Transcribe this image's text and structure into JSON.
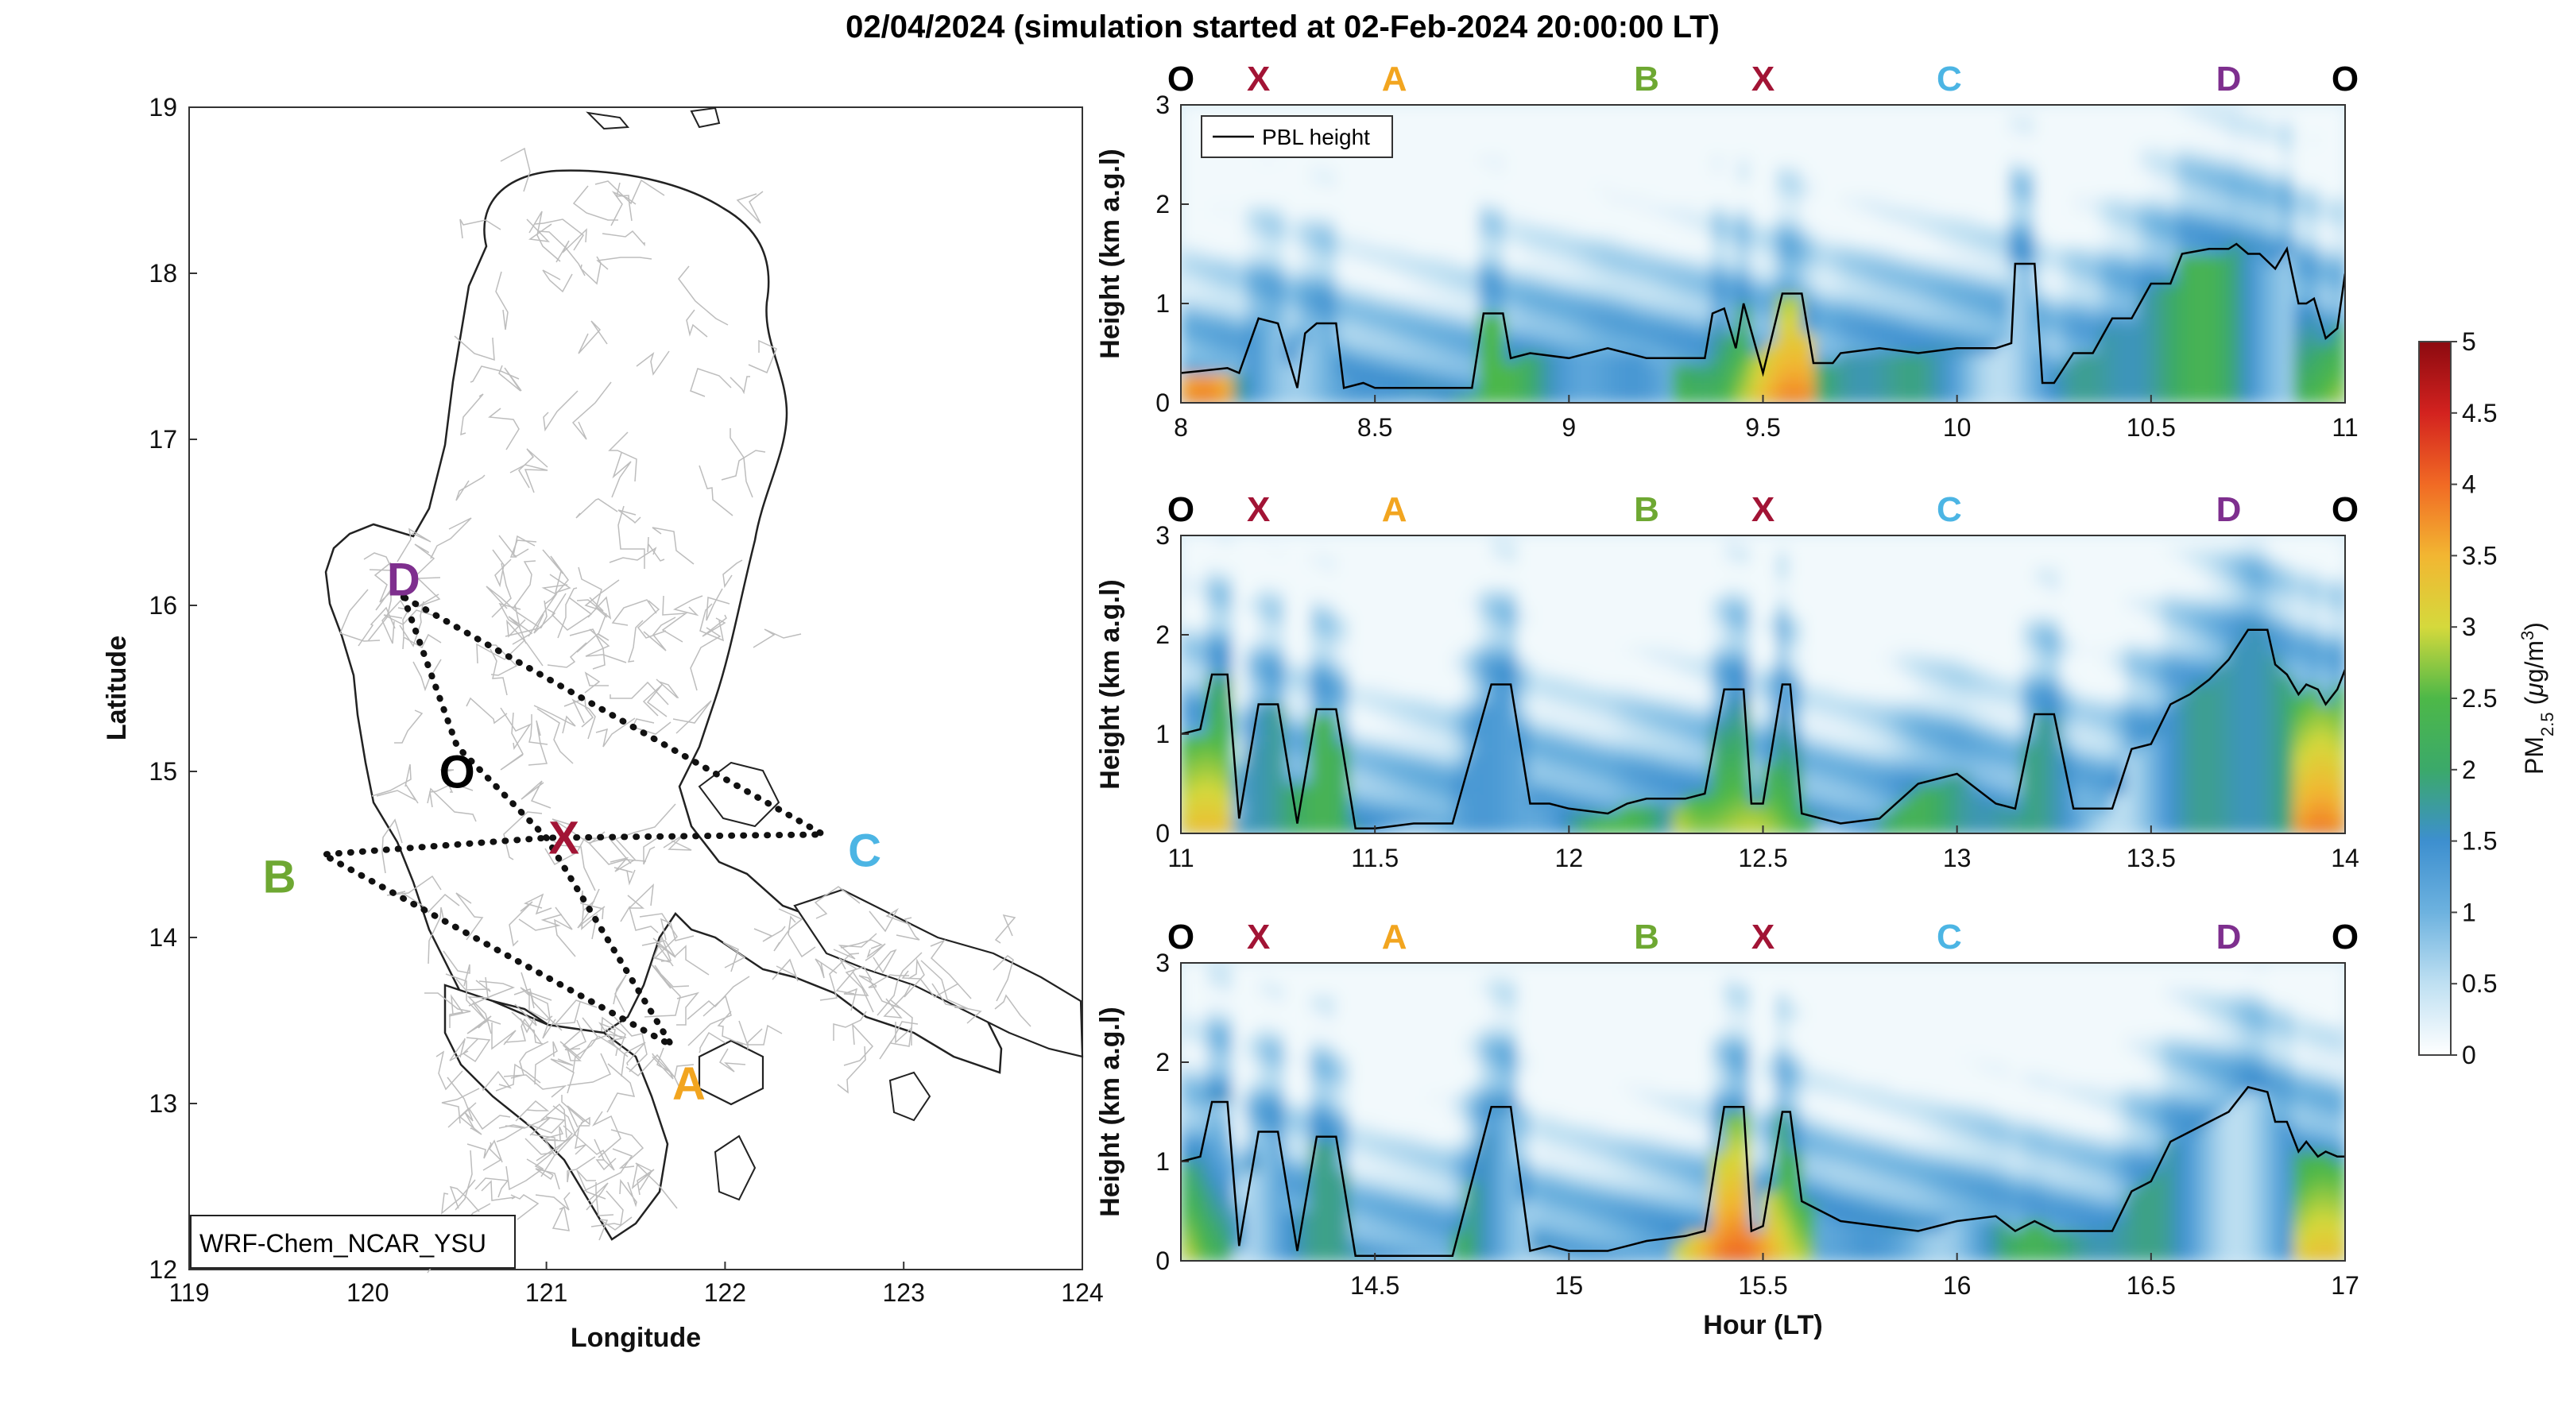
{
  "title": "02/04/2024 (simulation started at 02-Feb-2024 20:00:00 LT)",
  "colors": {
    "O": "#000000",
    "X": "#a21435",
    "A": "#f2a51f",
    "B": "#6ea832",
    "C": "#4cb5e4",
    "D": "#7e2f8e"
  },
  "map": {
    "model_label": "WRF-Chem_NCAR_YSU",
    "xlabel": "Longitude",
    "ylabel": "Latitude",
    "xticks": [
      119,
      120,
      121,
      122,
      123,
      124
    ],
    "yticks": [
      12,
      13,
      14,
      15,
      16,
      17,
      18,
      19
    ],
    "xlim": [
      119,
      124
    ],
    "ylim": [
      12,
      19
    ],
    "points": [
      {
        "name": "D",
        "lon": 120.2,
        "lat": 16.05
      },
      {
        "name": "O",
        "lon": 120.5,
        "lat": 15.15
      },
      {
        "name": "X",
        "lon": 121.0,
        "lat": 14.6
      },
      {
        "name": "B",
        "lon": 119.75,
        "lat": 14.5
      },
      {
        "name": "C",
        "lon": 122.55,
        "lat": 14.62
      },
      {
        "name": "A",
        "lon": 121.7,
        "lat": 13.35
      }
    ],
    "route": [
      "D",
      "O",
      "X",
      "A",
      "B",
      "X",
      "C",
      "D"
    ]
  },
  "chart_data": [
    {
      "type": "heatmap",
      "xlabel": "",
      "ylabel": "Height (km a.g.l)",
      "xlim": [
        8,
        11
      ],
      "ylim": [
        0,
        3
      ],
      "xticks": [
        8,
        8.5,
        9,
        9.5,
        10,
        10.5,
        11
      ],
      "yticks": [
        0,
        1,
        2,
        3
      ],
      "route_labels": [
        {
          "name": "O",
          "x": 8.0
        },
        {
          "name": "X",
          "x": 8.2
        },
        {
          "name": "A",
          "x": 8.55
        },
        {
          "name": "B",
          "x": 9.2
        },
        {
          "name": "X",
          "x": 9.5
        },
        {
          "name": "C",
          "x": 9.98
        },
        {
          "name": "D",
          "x": 10.7
        },
        {
          "name": "O",
          "x": 11.0
        }
      ],
      "legend": "PBL height",
      "pbl": {
        "x": [
          8.0,
          8.05,
          8.12,
          8.15,
          8.2,
          8.25,
          8.3,
          8.32,
          8.35,
          8.4,
          8.42,
          8.47,
          8.5,
          8.6,
          8.7,
          8.75,
          8.78,
          8.83,
          8.85,
          8.9,
          9.0,
          9.05,
          9.1,
          9.2,
          9.3,
          9.35,
          9.37,
          9.4,
          9.43,
          9.45,
          9.5,
          9.55,
          9.6,
          9.63,
          9.68,
          9.7,
          9.8,
          9.9,
          10.0,
          10.1,
          10.14,
          10.15,
          10.2,
          10.22,
          10.25,
          10.3,
          10.35,
          10.4,
          10.45,
          10.5,
          10.55,
          10.58,
          10.65,
          10.7,
          10.72,
          10.75,
          10.78,
          10.82,
          10.85,
          10.88,
          10.9,
          10.92,
          10.95,
          10.98,
          11.0
        ],
        "y": [
          0.3,
          0.32,
          0.35,
          0.3,
          0.85,
          0.8,
          0.15,
          0.7,
          0.8,
          0.8,
          0.15,
          0.2,
          0.15,
          0.15,
          0.15,
          0.15,
          0.9,
          0.9,
          0.45,
          0.5,
          0.45,
          0.5,
          0.55,
          0.45,
          0.45,
          0.45,
          0.9,
          0.95,
          0.55,
          1.0,
          0.3,
          1.1,
          1.1,
          0.4,
          0.4,
          0.5,
          0.55,
          0.5,
          0.55,
          0.55,
          0.6,
          1.4,
          1.4,
          0.2,
          0.2,
          0.5,
          0.5,
          0.85,
          0.85,
          1.2,
          1.2,
          1.5,
          1.55,
          1.55,
          1.6,
          1.5,
          1.5,
          1.35,
          1.55,
          1.0,
          1.0,
          1.05,
          0.65,
          0.75,
          1.3
        ]
      }
    },
    {
      "type": "heatmap",
      "xlabel": "",
      "ylabel": "Height (km a.g.l)",
      "xlim": [
        11,
        14
      ],
      "ylim": [
        0,
        3
      ],
      "xticks": [
        11,
        11.5,
        12,
        12.5,
        13,
        13.5,
        14
      ],
      "yticks": [
        0,
        1,
        2,
        3
      ],
      "route_labels": [
        {
          "name": "O",
          "x": 11.0
        },
        {
          "name": "X",
          "x": 11.2
        },
        {
          "name": "A",
          "x": 11.55
        },
        {
          "name": "B",
          "x": 12.2
        },
        {
          "name": "X",
          "x": 12.5
        },
        {
          "name": "C",
          "x": 12.98
        },
        {
          "name": "D",
          "x": 13.7
        },
        {
          "name": "O",
          "x": 14.0
        }
      ],
      "pbl": {
        "x": [
          11.0,
          11.05,
          11.08,
          11.12,
          11.15,
          11.2,
          11.25,
          11.3,
          11.35,
          11.4,
          11.45,
          11.5,
          11.6,
          11.7,
          11.8,
          11.85,
          11.9,
          11.95,
          12.0,
          12.1,
          12.15,
          12.2,
          12.3,
          12.35,
          12.4,
          12.45,
          12.47,
          12.5,
          12.55,
          12.57,
          12.6,
          12.65,
          12.7,
          12.8,
          12.9,
          13.0,
          13.1,
          13.15,
          13.2,
          13.25,
          13.3,
          13.4,
          13.45,
          13.5,
          13.55,
          13.6,
          13.65,
          13.7,
          13.75,
          13.8,
          13.82,
          13.85,
          13.88,
          13.9,
          13.93,
          13.95,
          13.98,
          14.0
        ],
        "y": [
          1.0,
          1.05,
          1.6,
          1.6,
          0.15,
          1.3,
          1.3,
          0.1,
          1.25,
          1.25,
          0.05,
          0.05,
          0.1,
          0.1,
          1.5,
          1.5,
          0.3,
          0.3,
          0.25,
          0.2,
          0.3,
          0.35,
          0.35,
          0.4,
          1.45,
          1.45,
          0.3,
          0.3,
          1.5,
          1.5,
          0.2,
          0.15,
          0.1,
          0.15,
          0.5,
          0.6,
          0.3,
          0.25,
          1.2,
          1.2,
          0.25,
          0.25,
          0.85,
          0.9,
          1.3,
          1.4,
          1.55,
          1.75,
          2.05,
          2.05,
          1.7,
          1.6,
          1.4,
          1.5,
          1.45,
          1.3,
          1.45,
          1.65
        ]
      }
    },
    {
      "type": "heatmap",
      "xlabel": "Hour (LT)",
      "ylabel": "Height (km a.g.l)",
      "xlim": [
        14,
        17
      ],
      "ylim": [
        0,
        3
      ],
      "xticks": [
        14.5,
        15,
        15.5,
        16,
        16.5,
        17
      ],
      "yticks": [
        0,
        1,
        2,
        3
      ],
      "route_labels": [
        {
          "name": "O",
          "x": 14.0
        },
        {
          "name": "X",
          "x": 14.2
        },
        {
          "name": "A",
          "x": 14.55
        },
        {
          "name": "B",
          "x": 15.2
        },
        {
          "name": "X",
          "x": 15.5
        },
        {
          "name": "C",
          "x": 15.98
        },
        {
          "name": "D",
          "x": 16.7
        },
        {
          "name": "O",
          "x": 17.0
        }
      ],
      "pbl": {
        "x": [
          14.0,
          14.05,
          14.08,
          14.12,
          14.15,
          14.2,
          14.25,
          14.3,
          14.35,
          14.4,
          14.45,
          14.5,
          14.6,
          14.7,
          14.8,
          14.85,
          14.9,
          14.95,
          15.0,
          15.1,
          15.15,
          15.2,
          15.3,
          15.35,
          15.4,
          15.45,
          15.47,
          15.5,
          15.55,
          15.57,
          15.6,
          15.65,
          15.7,
          15.8,
          15.9,
          16.0,
          16.1,
          16.15,
          16.2,
          16.25,
          16.3,
          16.4,
          16.45,
          16.5,
          16.55,
          16.6,
          16.65,
          16.7,
          16.75,
          16.8,
          16.82,
          16.85,
          16.88,
          16.9,
          16.93,
          16.95,
          16.98,
          17.0
        ],
        "y": [
          1.0,
          1.05,
          1.6,
          1.6,
          0.15,
          1.3,
          1.3,
          0.1,
          1.25,
          1.25,
          0.05,
          0.05,
          0.05,
          0.05,
          1.55,
          1.55,
          0.1,
          0.15,
          0.1,
          0.1,
          0.15,
          0.2,
          0.25,
          0.3,
          1.55,
          1.55,
          0.3,
          0.35,
          1.5,
          1.5,
          0.6,
          0.5,
          0.4,
          0.35,
          0.3,
          0.4,
          0.45,
          0.3,
          0.4,
          0.3,
          0.3,
          0.3,
          0.7,
          0.8,
          1.2,
          1.3,
          1.4,
          1.5,
          1.75,
          1.7,
          1.4,
          1.4,
          1.1,
          1.2,
          1.05,
          1.1,
          1.05,
          1.05
        ]
      }
    }
  ],
  "colorbar": {
    "label_main": "PM",
    "label_sub": "2.5",
    "label_unit_pre": " (",
    "label_mu": "μ",
    "label_unit_mid": "g/m",
    "label_sup": "3",
    "label_unit_post": ")",
    "ticks": [
      "0",
      "0.5",
      "1",
      "1.5",
      "2",
      "2.5",
      "3",
      "3.5",
      "4",
      "4.5",
      "5"
    ],
    "vmin": 0,
    "vmax": 5,
    "stops": [
      "#ffffff",
      "#bfe0f2",
      "#6db2df",
      "#3d8fcf",
      "#3ba96a",
      "#4db848",
      "#d5d93c",
      "#f2b632",
      "#f16a24",
      "#d3221f",
      "#8c0a10"
    ]
  }
}
